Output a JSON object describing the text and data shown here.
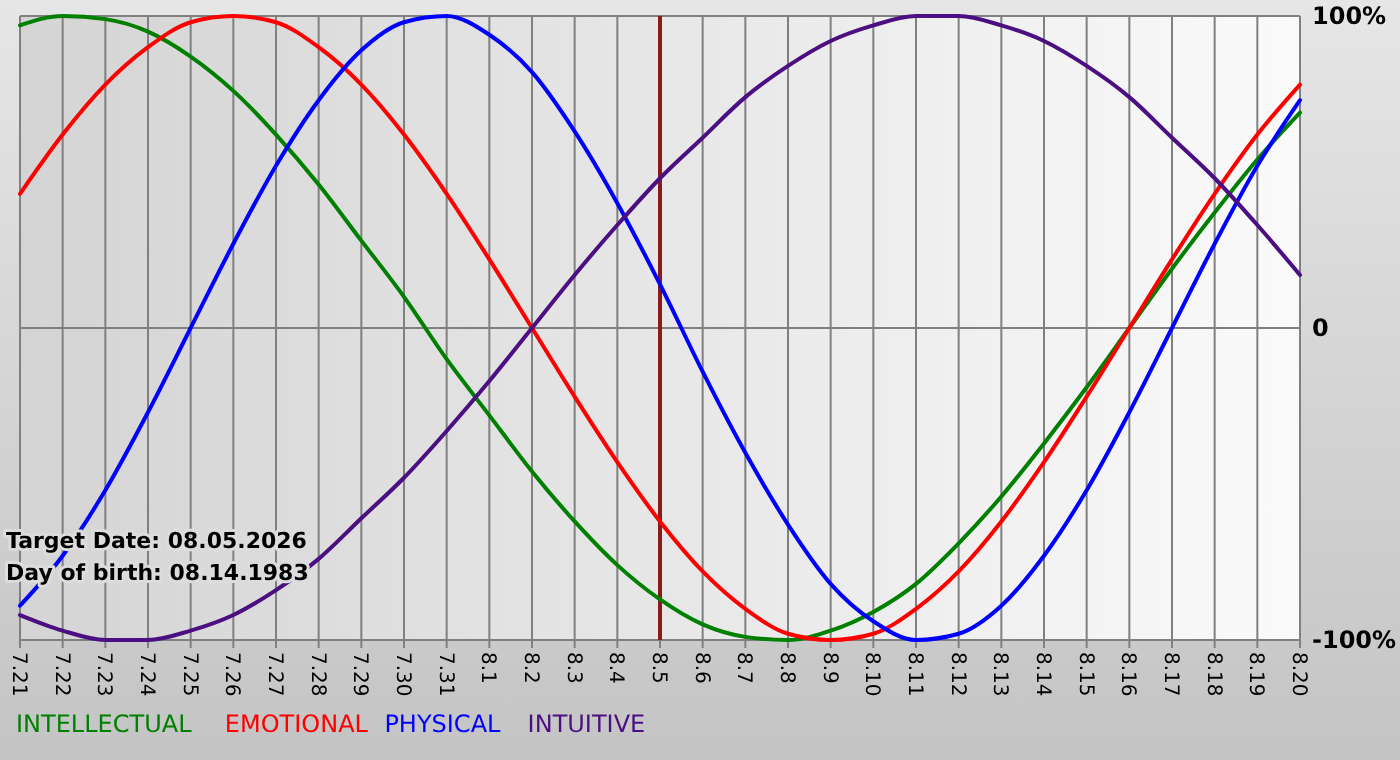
{
  "chart_data": {
    "type": "line",
    "categories": [
      "7.21",
      "7.22",
      "7.23",
      "7.24",
      "7.25",
      "7.26",
      "7.27",
      "7.28",
      "7.29",
      "7.30",
      "7.31",
      "8.1",
      "8.2",
      "8.3",
      "8.4",
      "8.5",
      "8.6",
      "8.7",
      "8.8",
      "8.9",
      "8.10",
      "8.11",
      "8.12",
      "8.13",
      "8.14",
      "8.15",
      "8.16",
      "8.17",
      "8.18",
      "8.19",
      "8.20"
    ],
    "series": [
      {
        "name": "INTELLECTUAL",
        "color": "#008000",
        "values": [
          97,
          100,
          99,
          95,
          87,
          76,
          62,
          46,
          28,
          10,
          -10,
          -28,
          -46,
          -62,
          -76,
          -87,
          -95,
          -99,
          -100,
          -97,
          -91,
          -82,
          -69,
          -54,
          -37,
          -19,
          0,
          19,
          37,
          54,
          69
        ]
      },
      {
        "name": "EMOTIONAL",
        "color": "#ff0000",
        "values": [
          43,
          62,
          78,
          90,
          98,
          100,
          98,
          90,
          78,
          62,
          43,
          22,
          0,
          -22,
          -43,
          -62,
          -78,
          -90,
          -98,
          -100,
          -98,
          -90,
          -78,
          -62,
          -43,
          -22,
          0,
          22,
          43,
          62,
          78
        ]
      },
      {
        "name": "PHYSICAL",
        "color": "#0000ff",
        "values": [
          -89,
          -73,
          -52,
          -27,
          0,
          27,
          52,
          73,
          89,
          98,
          100,
          94,
          82,
          63,
          40,
          14,
          -14,
          -40,
          -63,
          -82,
          -94,
          -100,
          -98,
          -89,
          -73,
          -52,
          -27,
          0,
          27,
          52,
          73
        ]
      },
      {
        "name": "INTUITIVE",
        "color": "#4b0f82",
        "values": [
          -92,
          -97,
          -100,
          -100,
          -97,
          -92,
          -84,
          -74,
          -61,
          -48,
          -33,
          -17,
          0,
          17,
          33,
          48,
          61,
          74,
          84,
          92,
          97,
          100,
          100,
          97,
          92,
          84,
          74,
          61,
          48,
          33,
          17
        ]
      }
    ],
    "ylim": [
      -100,
      100
    ],
    "yticks": [
      {
        "value": -100,
        "label": "-100%"
      },
      0,
      {
        "value": 100,
        "label": "100%"
      }
    ],
    "grid": true,
    "legend": "bottom",
    "marker": "none",
    "line_style": "solid",
    "ref_lines": [
      {
        "axis": "x",
        "value": "8.5",
        "color": "#8b1a1a"
      }
    ],
    "annotations": [
      "Target Date: 08.05.2026",
      "Day of birth: 08.14.1983"
    ]
  }
}
